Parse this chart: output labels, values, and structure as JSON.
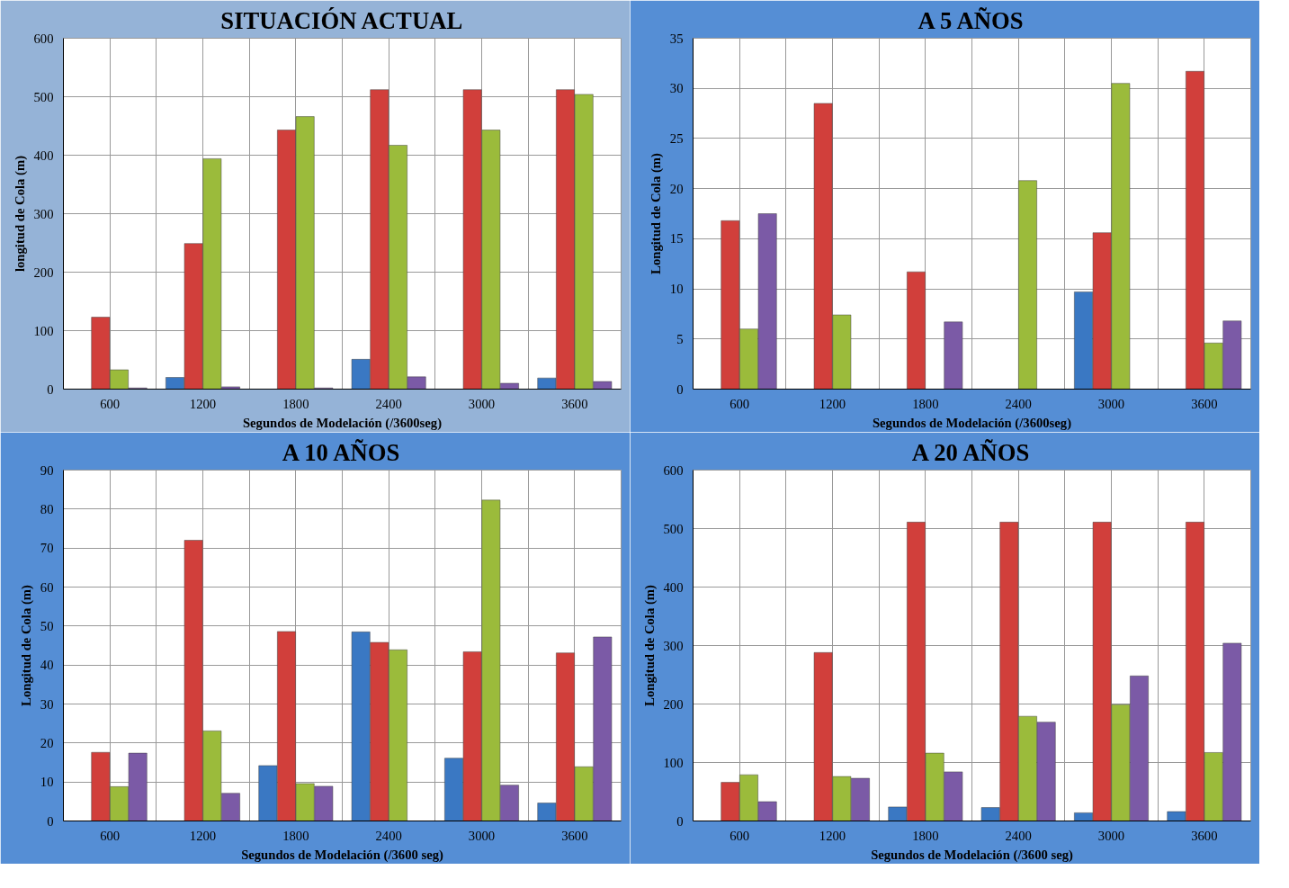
{
  "chart_data": [
    {
      "type": "bar",
      "title": "SITUACIÓN ACTUAL",
      "xlabel": "Segundos de Modelación (/3600seg)",
      "ylabel": "longitud de Cola (m)",
      "categories": [
        "600",
        "1200",
        "1800",
        "2400",
        "3000",
        "3600"
      ],
      "ylim": [
        0,
        600
      ],
      "yticks": [
        0,
        100,
        200,
        300,
        400,
        500,
        600
      ],
      "grid": true,
      "series": [
        {
          "color": "#3a78c3",
          "values": [
            null,
            20,
            null,
            51,
            null,
            19
          ]
        },
        {
          "color": "#d13f3b",
          "values": [
            123,
            249,
            443,
            512,
            512,
            512
          ]
        },
        {
          "color": "#9bbb3b",
          "values": [
            33,
            394,
            466,
            417,
            443,
            504
          ]
        },
        {
          "color": "#7b5aa6",
          "values": [
            2,
            4,
            2,
            21,
            10,
            13
          ]
        }
      ]
    },
    {
      "type": "bar",
      "title": "A 5 AÑOS",
      "xlabel": "Segundos de Modelación (/3600seg)",
      "ylabel": "Longitud de Cola (m)",
      "categories": [
        "600",
        "1200",
        "1800",
        "2400",
        "3000",
        "3600"
      ],
      "ylim": [
        0,
        35
      ],
      "yticks": [
        0,
        5,
        10,
        15,
        20,
        25,
        30,
        35
      ],
      "grid": true,
      "series": [
        {
          "color": "#3a78c3",
          "values": [
            null,
            null,
            null,
            null,
            9.7,
            null
          ]
        },
        {
          "color": "#d13f3b",
          "values": [
            16.8,
            28.5,
            11.7,
            null,
            15.6,
            31.7
          ]
        },
        {
          "color": "#9bbb3b",
          "values": [
            6.0,
            7.4,
            null,
            20.8,
            30.5,
            4.6
          ]
        },
        {
          "color": "#7b5aa6",
          "values": [
            17.5,
            null,
            6.7,
            null,
            null,
            6.8
          ]
        }
      ]
    },
    {
      "type": "bar",
      "title": "A 10 AÑOS",
      "xlabel": "Segundos de Modelación (/3600 seg)",
      "ylabel": "Longitud de Cola (m)",
      "categories": [
        "600",
        "1200",
        "1800",
        "2400",
        "3000",
        "3600"
      ],
      "ylim": [
        0,
        90
      ],
      "yticks": [
        0,
        10,
        20,
        30,
        40,
        50,
        60,
        70,
        80,
        90
      ],
      "grid": true,
      "series": [
        {
          "color": "#3a78c3",
          "values": [
            null,
            null,
            14.2,
            48.5,
            16.1,
            4.6
          ]
        },
        {
          "color": "#d13f3b",
          "values": [
            17.6,
            72,
            48.6,
            45.8,
            43.4,
            43.1
          ]
        },
        {
          "color": "#9bbb3b",
          "values": [
            8.8,
            23.1,
            9.6,
            43.9,
            82.3,
            13.9
          ]
        },
        {
          "color": "#7b5aa6",
          "values": [
            17.4,
            7.1,
            8.9,
            null,
            9.2,
            47.2
          ]
        }
      ]
    },
    {
      "type": "bar",
      "title": "A 20 AÑOS",
      "xlabel": "Segundos de Modelación (/3600 seg)",
      "ylabel": "Longitud de Cola (m)",
      "categories": [
        "600",
        "1200",
        "1800",
        "2400",
        "3000",
        "3600"
      ],
      "ylim": [
        0,
        600
      ],
      "yticks": [
        0,
        100,
        200,
        300,
        400,
        500,
        600
      ],
      "grid": true,
      "series": [
        {
          "color": "#3a78c3",
          "values": [
            null,
            null,
            24,
            23,
            14,
            16
          ]
        },
        {
          "color": "#d13f3b",
          "values": [
            66,
            288,
            511,
            511,
            511,
            511
          ]
        },
        {
          "color": "#9bbb3b",
          "values": [
            79,
            76,
            116,
            179,
            199,
            117
          ]
        },
        {
          "color": "#7b5aa6",
          "values": [
            33,
            73,
            84,
            169,
            248,
            304
          ]
        }
      ]
    }
  ]
}
